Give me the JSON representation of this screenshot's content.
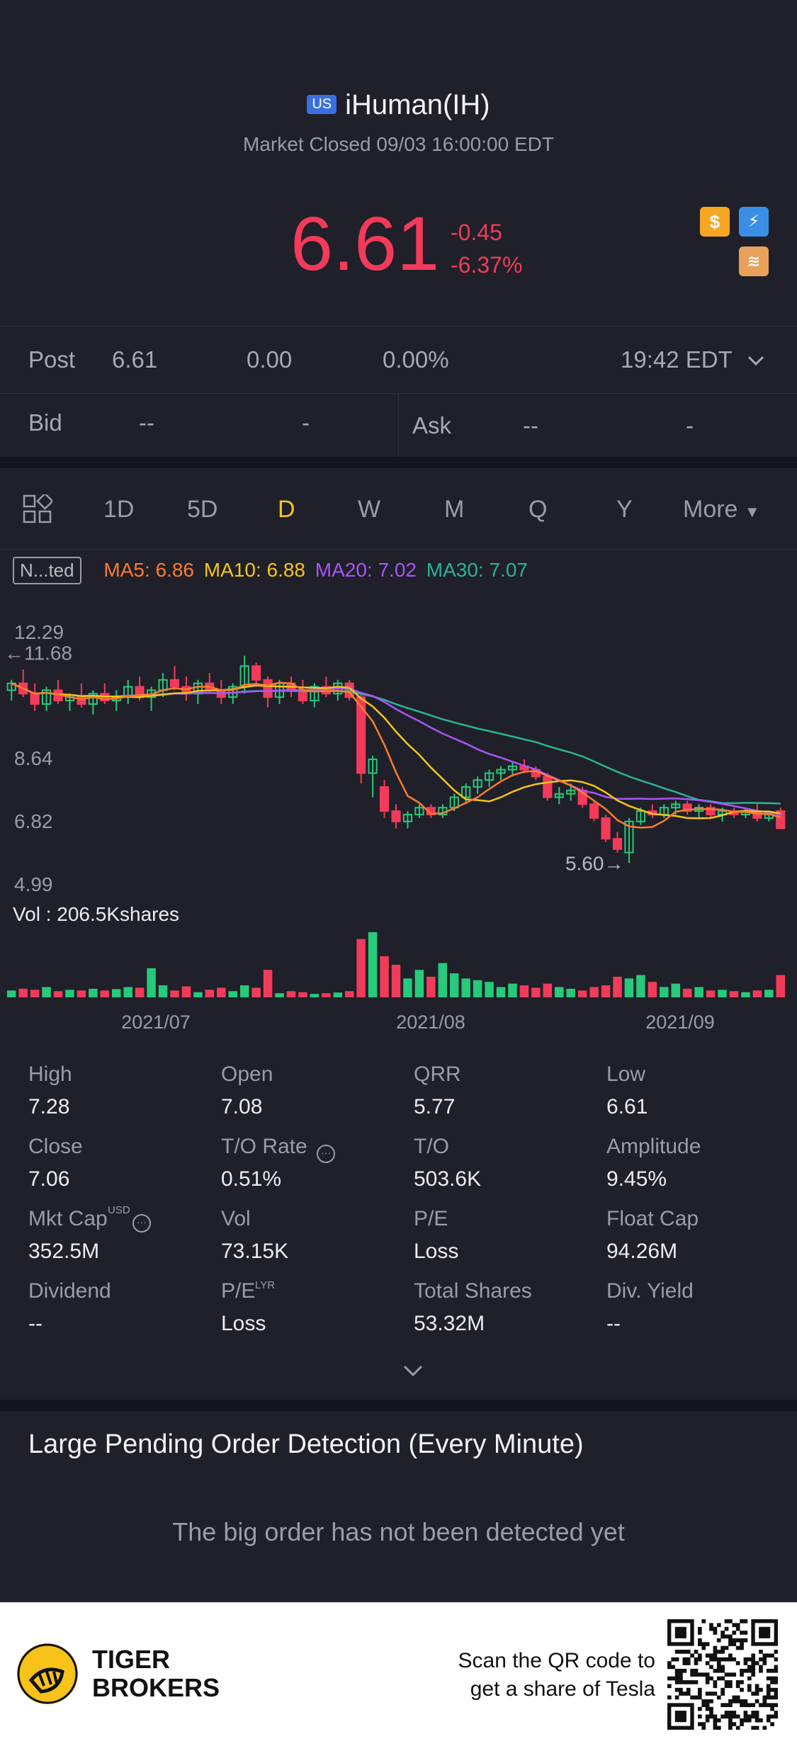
{
  "header": {
    "market_badge": "US",
    "title": "iHuman(IH)",
    "status": "Market Closed 09/03 16:00:00 EDT",
    "price": "6.61",
    "change": "-0.45",
    "change_pct": "-6.37%",
    "icons": [
      "dollar-icon",
      "lightning-level1-icon",
      "layers-a-icon"
    ]
  },
  "post": {
    "label": "Post",
    "price": "6.61",
    "change": "0.00",
    "pct": "0.00%",
    "time": "19:42 EDT"
  },
  "bid_ask": {
    "bid_label": "Bid",
    "bid_price": "--",
    "bid_size": "-",
    "ask_label": "Ask",
    "ask_price": "--",
    "ask_size": "-"
  },
  "tabs": [
    "1D",
    "5D",
    "D",
    "W",
    "M",
    "Q",
    "Y",
    "More"
  ],
  "active_tab": "D",
  "ma": {
    "adjust": "N...ted",
    "ma5": "MA5: 6.86",
    "ma10": "MA10: 6.88",
    "ma20": "MA20: 7.02",
    "ma30": "MA30: 7.07",
    "colors": {
      "ma5": "#ff7a2f",
      "ma10": "#f5c518",
      "ma20": "#a855f7",
      "ma30": "#2bb39a"
    }
  },
  "chart_data": {
    "type": "candlestick",
    "y_ticks": [
      "12.29",
      "11.68",
      "8.64",
      "6.82",
      "4.99"
    ],
    "price_max_label": "11.68",
    "price_min_label": "5.60",
    "ylim": [
      4.99,
      12.29
    ],
    "x_ticks": [
      "2021/07",
      "2021/08",
      "2021/09"
    ],
    "volume_label": "Vol  : 206.5Kshares",
    "colors": {
      "up": "#27c97a",
      "down": "#f23b5a"
    },
    "candles": [
      [
        10.6,
        10.9,
        10.3,
        10.8
      ],
      [
        10.8,
        11.2,
        10.4,
        10.5
      ],
      [
        10.5,
        10.8,
        10.0,
        10.2
      ],
      [
        10.2,
        10.7,
        10.0,
        10.6
      ],
      [
        10.6,
        10.9,
        10.2,
        10.3
      ],
      [
        10.3,
        10.5,
        10.0,
        10.4
      ],
      [
        10.4,
        10.8,
        10.1,
        10.2
      ],
      [
        10.2,
        10.6,
        9.9,
        10.5
      ],
      [
        10.5,
        10.8,
        10.2,
        10.3
      ],
      [
        10.3,
        10.6,
        10.0,
        10.4
      ],
      [
        10.4,
        10.9,
        10.2,
        10.7
      ],
      [
        10.7,
        11.0,
        10.3,
        10.4
      ],
      [
        10.4,
        10.7,
        10.0,
        10.6
      ],
      [
        10.6,
        11.1,
        10.4,
        10.9
      ],
      [
        10.9,
        11.3,
        10.6,
        10.7
      ],
      [
        10.7,
        11.0,
        10.3,
        10.5
      ],
      [
        10.5,
        10.9,
        10.2,
        10.8
      ],
      [
        10.8,
        11.1,
        10.5,
        10.6
      ],
      [
        10.6,
        10.9,
        10.2,
        10.4
      ],
      [
        10.4,
        10.8,
        10.2,
        10.7
      ],
      [
        10.7,
        11.6,
        10.5,
        11.3
      ],
      [
        11.3,
        11.4,
        10.7,
        10.9
      ],
      [
        10.9,
        11.0,
        10.1,
        10.4
      ],
      [
        10.4,
        10.9,
        10.2,
        10.8
      ],
      [
        10.8,
        11.0,
        10.4,
        10.6
      ],
      [
        10.6,
        10.9,
        10.2,
        10.3
      ],
      [
        10.3,
        10.8,
        10.1,
        10.7
      ],
      [
        10.7,
        11.0,
        10.4,
        10.5
      ],
      [
        10.5,
        10.9,
        10.3,
        10.8
      ],
      [
        10.8,
        10.9,
        10.3,
        10.4
      ],
      [
        10.4,
        10.5,
        7.9,
        8.2
      ],
      [
        8.2,
        8.7,
        7.5,
        8.6
      ],
      [
        7.8,
        8.0,
        6.9,
        7.1
      ],
      [
        7.1,
        7.3,
        6.6,
        6.8
      ],
      [
        6.8,
        7.1,
        6.6,
        7.0
      ],
      [
        7.0,
        7.3,
        6.9,
        7.2
      ],
      [
        7.2,
        7.3,
        6.9,
        7.0
      ],
      [
        7.0,
        7.3,
        6.9,
        7.2
      ],
      [
        7.2,
        7.6,
        7.1,
        7.5
      ],
      [
        7.5,
        7.9,
        7.3,
        7.8
      ],
      [
        7.8,
        8.1,
        7.6,
        8.0
      ],
      [
        8.0,
        8.3,
        7.8,
        8.2
      ],
      [
        8.2,
        8.4,
        8.0,
        8.3
      ],
      [
        8.3,
        8.5,
        8.1,
        8.4
      ],
      [
        8.4,
        8.6,
        8.2,
        8.3
      ],
      [
        8.3,
        8.4,
        8.0,
        8.1
      ],
      [
        8.1,
        8.2,
        7.4,
        7.5
      ],
      [
        7.5,
        7.8,
        7.3,
        7.6
      ],
      [
        7.6,
        7.9,
        7.4,
        7.7
      ],
      [
        7.7,
        7.8,
        7.2,
        7.3
      ],
      [
        7.3,
        7.4,
        6.8,
        6.9
      ],
      [
        6.9,
        7.0,
        6.2,
        6.3
      ],
      [
        6.3,
        6.5,
        5.9,
        6.0
      ],
      [
        5.9,
        6.9,
        5.6,
        6.8
      ],
      [
        6.8,
        7.2,
        6.7,
        7.1
      ],
      [
        7.1,
        7.3,
        6.9,
        7.0
      ],
      [
        7.0,
        7.3,
        6.9,
        7.2
      ],
      [
        7.2,
        7.4,
        7.0,
        7.3
      ],
      [
        7.3,
        7.4,
        7.0,
        7.1
      ],
      [
        7.1,
        7.3,
        6.9,
        7.2
      ],
      [
        7.2,
        7.3,
        6.9,
        7.0
      ],
      [
        7.0,
        7.2,
        6.8,
        7.1
      ],
      [
        7.1,
        7.2,
        6.9,
        7.0
      ],
      [
        7.0,
        7.2,
        6.9,
        7.1
      ],
      [
        7.1,
        7.3,
        6.8,
        6.9
      ],
      [
        6.9,
        7.1,
        6.8,
        7.0
      ],
      [
        7.1,
        7.2,
        6.6,
        6.6
      ]
    ],
    "volumes": [
      20,
      25,
      22,
      30,
      18,
      22,
      20,
      25,
      20,
      24,
      30,
      28,
      85,
      35,
      20,
      32,
      15,
      22,
      28,
      18,
      35,
      28,
      80,
      12,
      18,
      15,
      10,
      12,
      14,
      18,
      170,
      190,
      120,
      95,
      55,
      80,
      60,
      100,
      70,
      55,
      50,
      45,
      30,
      40,
      35,
      28,
      40,
      30,
      25,
      20,
      30,
      35,
      60,
      55,
      65,
      45,
      30,
      40,
      25,
      30,
      20,
      22,
      18,
      15,
      20,
      22,
      65
    ]
  },
  "stats": [
    {
      "label": "High",
      "value": "7.28"
    },
    {
      "label": "Open",
      "value": "7.08"
    },
    {
      "label": "QRR",
      "value": "5.77"
    },
    {
      "label": "Low",
      "value": "6.61"
    },
    {
      "label": "Close",
      "value": "7.06"
    },
    {
      "label": "T/O Rate",
      "value": "0.51%"
    },
    {
      "label": "T/O",
      "value": "503.6K"
    },
    {
      "label": "Amplitude",
      "value": "9.45%"
    },
    {
      "label": "Mkt Cap",
      "value": "352.5M"
    },
    {
      "label": "Vol",
      "value": "73.15K"
    },
    {
      "label": "P/E",
      "value": "Loss"
    },
    {
      "label": "Float Cap",
      "value": "94.26M"
    },
    {
      "label": "Dividend",
      "value": "--"
    },
    {
      "label": "P/E",
      "value": "Loss"
    },
    {
      "label": "Total Shares",
      "value": "53.32M"
    },
    {
      "label": "Div. Yield",
      "value": "--"
    }
  ],
  "stat_sups": {
    "usd": "USD",
    "lyr": "LYR"
  },
  "pending": {
    "title": "Large Pending Order Detection (Every Minute)",
    "empty": "The big order has not been detected yet"
  },
  "footer": {
    "brand_line1": "TIGER",
    "brand_line2": "BROKERS",
    "scan_line1": "Scan the QR code to",
    "scan_line2": "get a share of Tesla"
  }
}
